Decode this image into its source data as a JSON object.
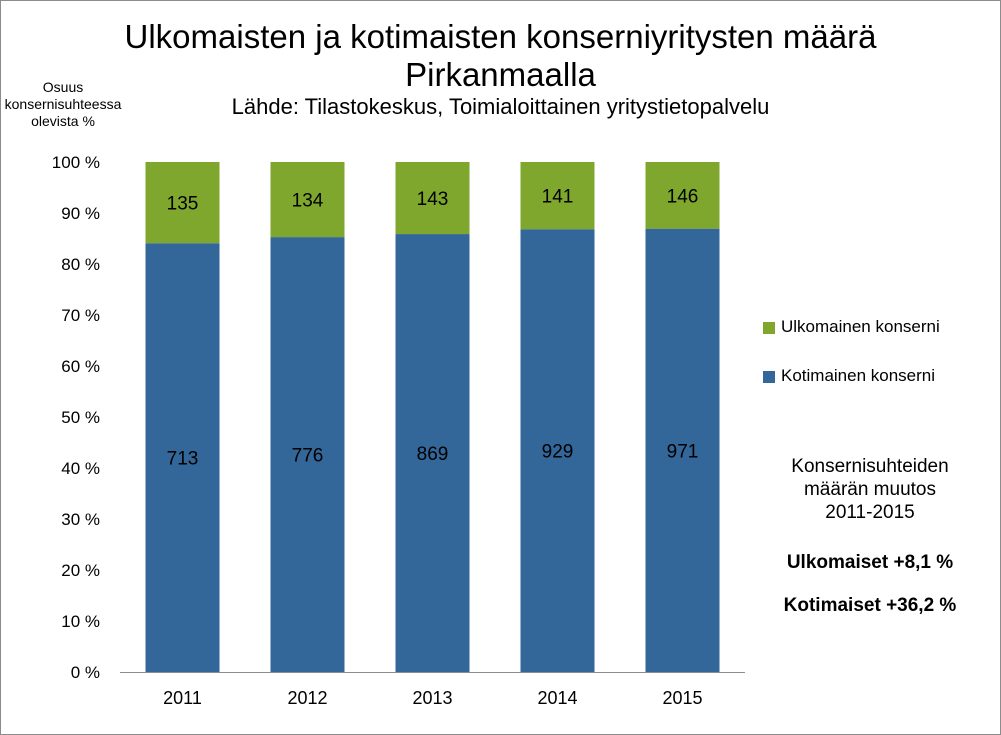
{
  "title": {
    "line1": "Ulkomaisten ja kotimaisten konserniyritysten määrä",
    "line2": "Pirkanmaalla",
    "source": "Lähde: Tilastokeskus, Toimialoittainen yritystietopalvelu"
  },
  "ylabel_lines": [
    "Osuus",
    "konsernisuhteessa",
    "olevista %"
  ],
  "legend": {
    "foreign": {
      "label": "Ulkomainen konserni",
      "color": "#7fa72e"
    },
    "domestic": {
      "label": "Kotimainen konserni",
      "color": "#336699"
    }
  },
  "info_box": {
    "title_lines": [
      "Konsernisuhteiden",
      "määrän muutos",
      "2011-2015"
    ],
    "foreign_change": "Ulkomaiset +8,1 %",
    "domestic_change": "Kotimaiset  +36,2 %"
  },
  "chart_data": {
    "type": "bar",
    "stacked": true,
    "stacking": "percent",
    "categories": [
      "2011",
      "2012",
      "2013",
      "2014",
      "2015"
    ],
    "series": [
      {
        "name": "Kotimainen konserni",
        "values": [
          713,
          776,
          869,
          929,
          971
        ],
        "color": "#336699"
      },
      {
        "name": "Ulkomainen konserni",
        "values": [
          135,
          134,
          143,
          141,
          146
        ],
        "color": "#7fa72e"
      }
    ],
    "ylabel": "Osuus konsernisuhteessa olevista %",
    "ylim": [
      0,
      100
    ],
    "yticks": [
      "0 %",
      "10 %",
      "20 %",
      "30 %",
      "40 %",
      "50 %",
      "60 %",
      "70 %",
      "80 %",
      "90 %",
      "100 %"
    ],
    "grid": false,
    "legend_position": "right"
  }
}
